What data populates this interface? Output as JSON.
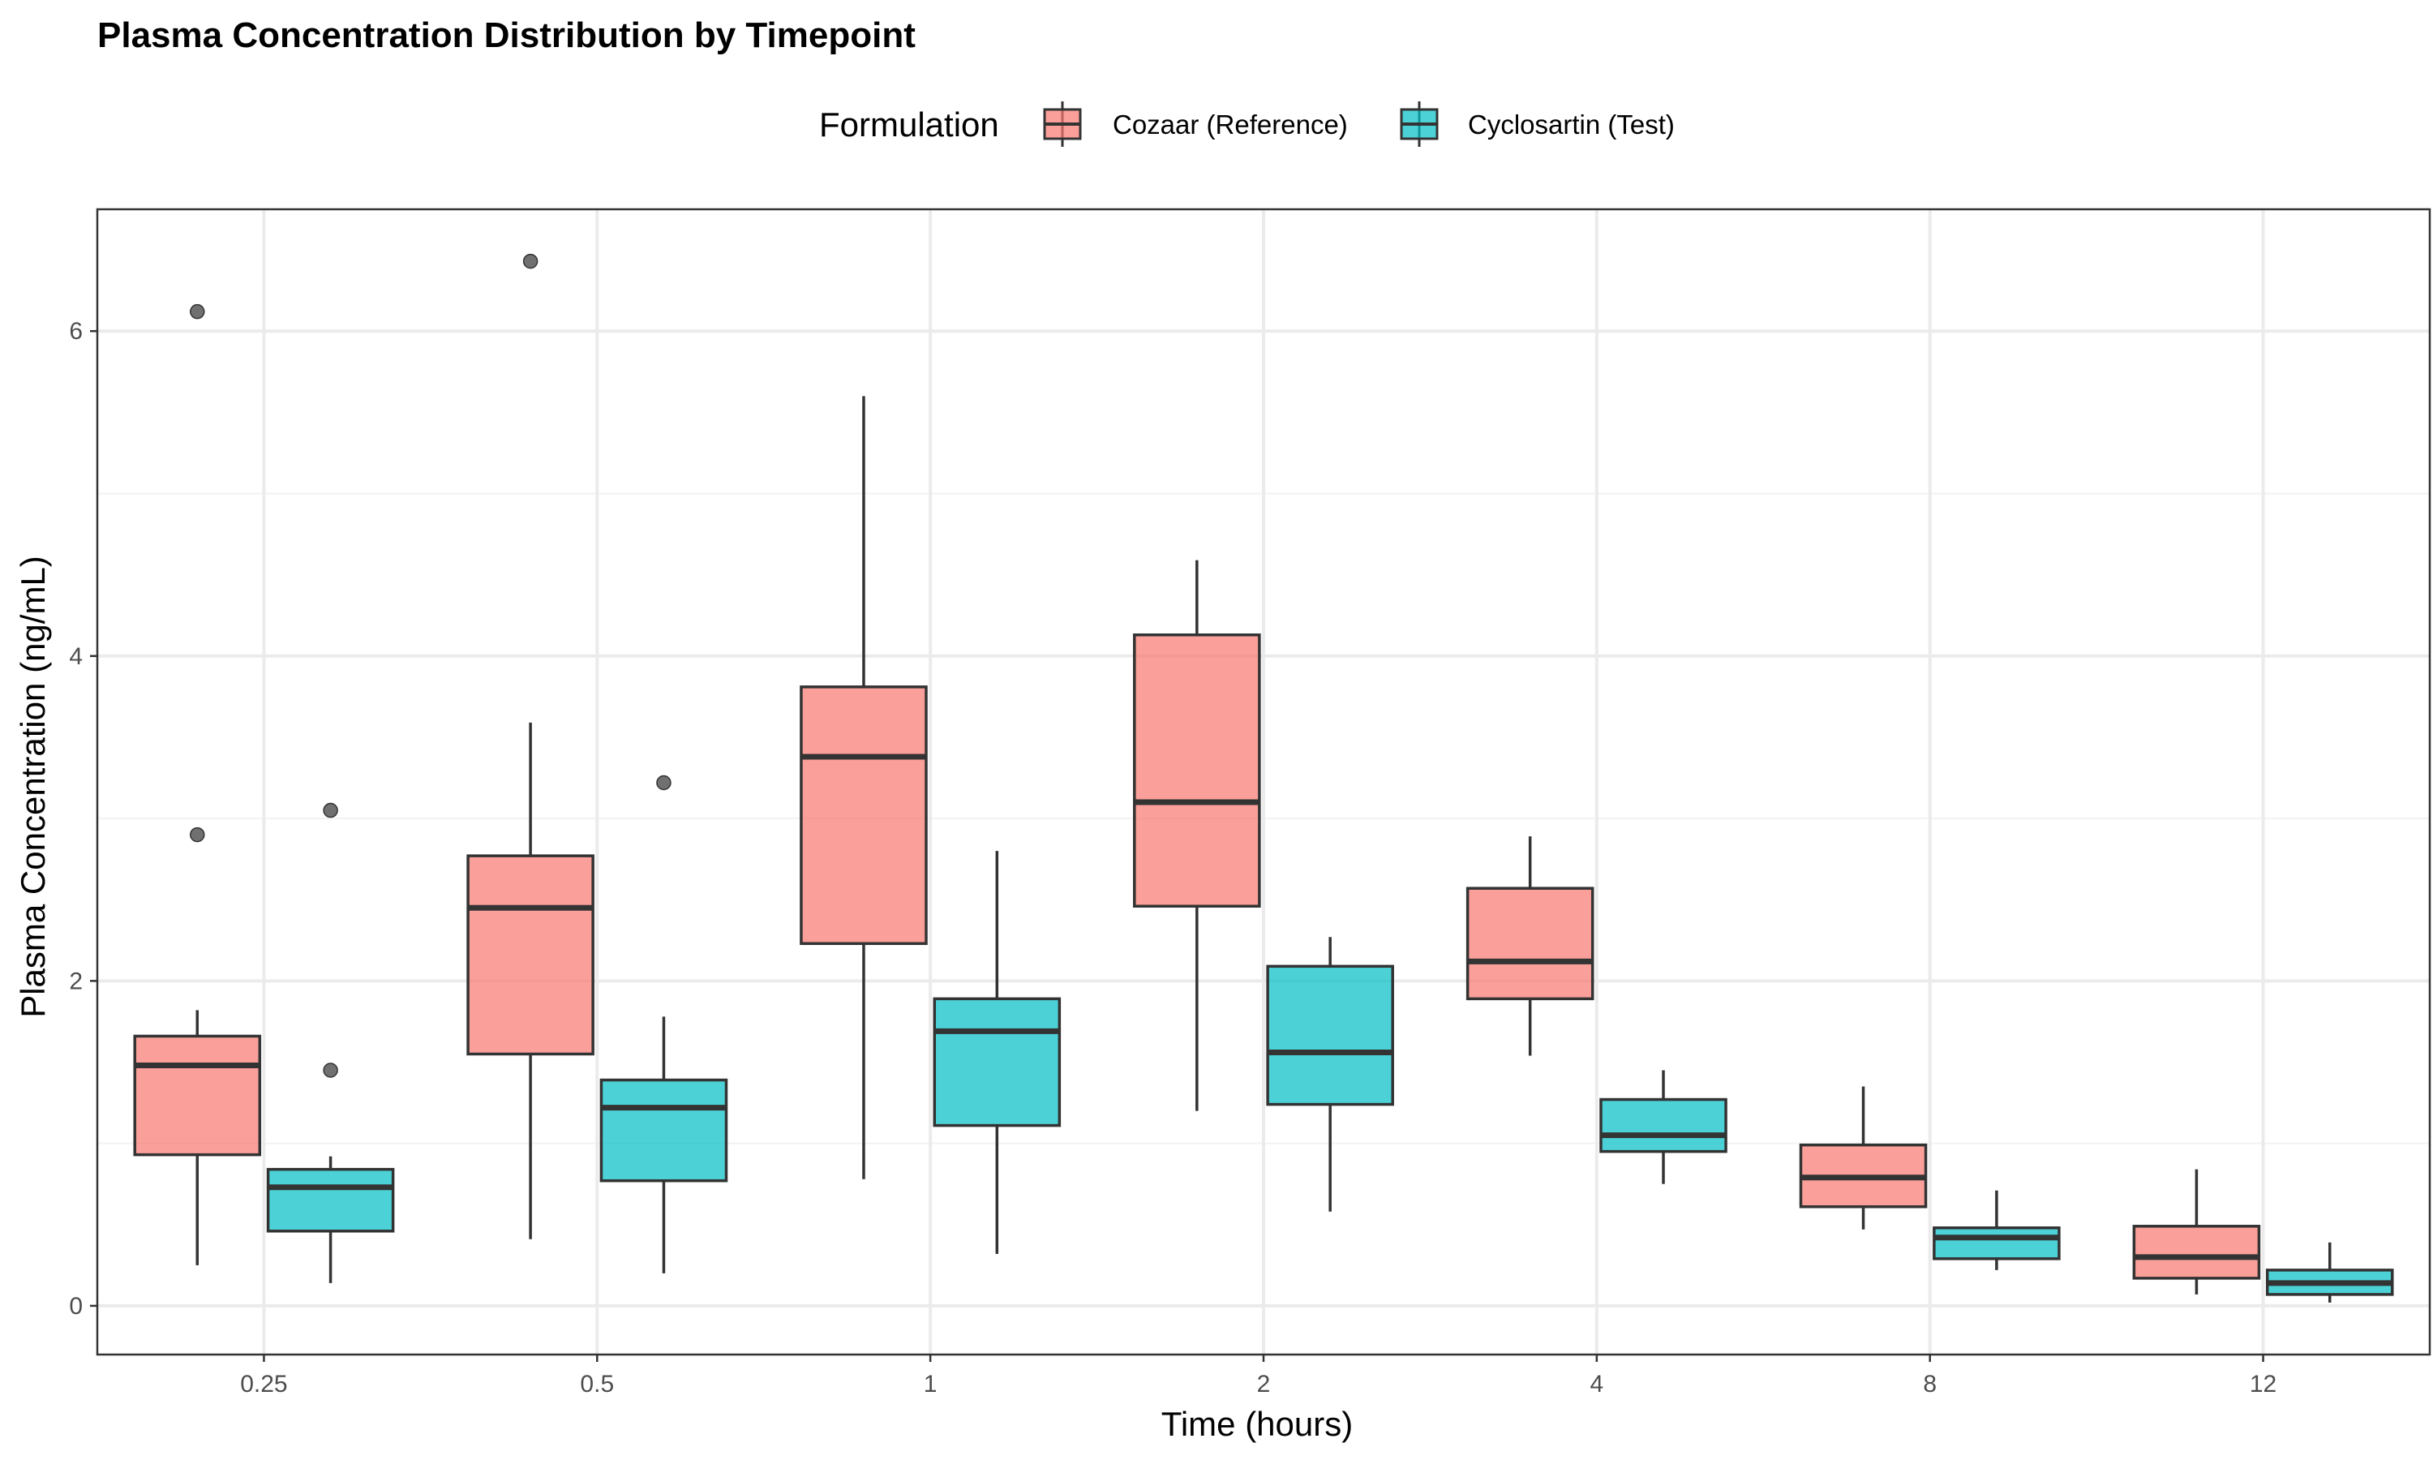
{
  "chart_data": {
    "type": "boxplot",
    "title": "Plasma Concentration Distribution by Timepoint",
    "xlabel": "Time (hours)",
    "ylabel": "Plasma Concentration (ng/mL)",
    "categories": [
      "0.25",
      "0.5",
      "1",
      "2",
      "4",
      "8",
      "12"
    ],
    "yticks": [
      0,
      2,
      4,
      6
    ],
    "ylim": [
      -0.3,
      6.75
    ],
    "grid": true,
    "legend": {
      "title": "Formulation",
      "placement": "top"
    },
    "series": [
      {
        "name": "Cozaar (Reference)",
        "color": "#F8766D",
        "boxes": [
          {
            "min": 0.25,
            "q1": 0.93,
            "median": 1.48,
            "q3": 1.66,
            "max": 1.82,
            "outliers": [
              2.9,
              6.12
            ]
          },
          {
            "min": 0.41,
            "q1": 1.55,
            "median": 2.45,
            "q3": 2.77,
            "max": 3.59,
            "outliers": [
              6.43
            ]
          },
          {
            "min": 0.78,
            "q1": 2.23,
            "median": 3.38,
            "q3": 3.81,
            "max": 5.6,
            "outliers": []
          },
          {
            "min": 1.2,
            "q1": 2.46,
            "median": 3.1,
            "q3": 4.13,
            "max": 4.59,
            "outliers": []
          },
          {
            "min": 1.54,
            "q1": 1.89,
            "median": 2.12,
            "q3": 2.57,
            "max": 2.89,
            "outliers": []
          },
          {
            "min": 0.47,
            "q1": 0.61,
            "median": 0.79,
            "q3": 0.99,
            "max": 1.35,
            "outliers": []
          },
          {
            "min": 0.07,
            "q1": 0.17,
            "median": 0.3,
            "q3": 0.49,
            "max": 0.84,
            "outliers": []
          }
        ]
      },
      {
        "name": "Cyclosartin (Test)",
        "color": "#00BFC4",
        "boxes": [
          {
            "min": 0.14,
            "q1": 0.46,
            "median": 0.73,
            "q3": 0.84,
            "max": 0.92,
            "outliers": [
              1.45,
              3.05
            ]
          },
          {
            "min": 0.2,
            "q1": 0.77,
            "median": 1.22,
            "q3": 1.39,
            "max": 1.78,
            "outliers": [
              3.22
            ]
          },
          {
            "min": 0.32,
            "q1": 1.11,
            "median": 1.69,
            "q3": 1.89,
            "max": 2.8,
            "outliers": []
          },
          {
            "min": 0.58,
            "q1": 1.24,
            "median": 1.56,
            "q3": 2.09,
            "max": 2.27,
            "outliers": []
          },
          {
            "min": 0.75,
            "q1": 0.95,
            "median": 1.05,
            "q3": 1.27,
            "max": 1.45,
            "outliers": []
          },
          {
            "min": 0.22,
            "q1": 0.29,
            "median": 0.42,
            "q3": 0.48,
            "max": 0.71,
            "outliers": []
          },
          {
            "min": 0.02,
            "q1": 0.07,
            "median": 0.14,
            "q3": 0.22,
            "max": 0.39,
            "outliers": []
          }
        ]
      }
    ]
  }
}
